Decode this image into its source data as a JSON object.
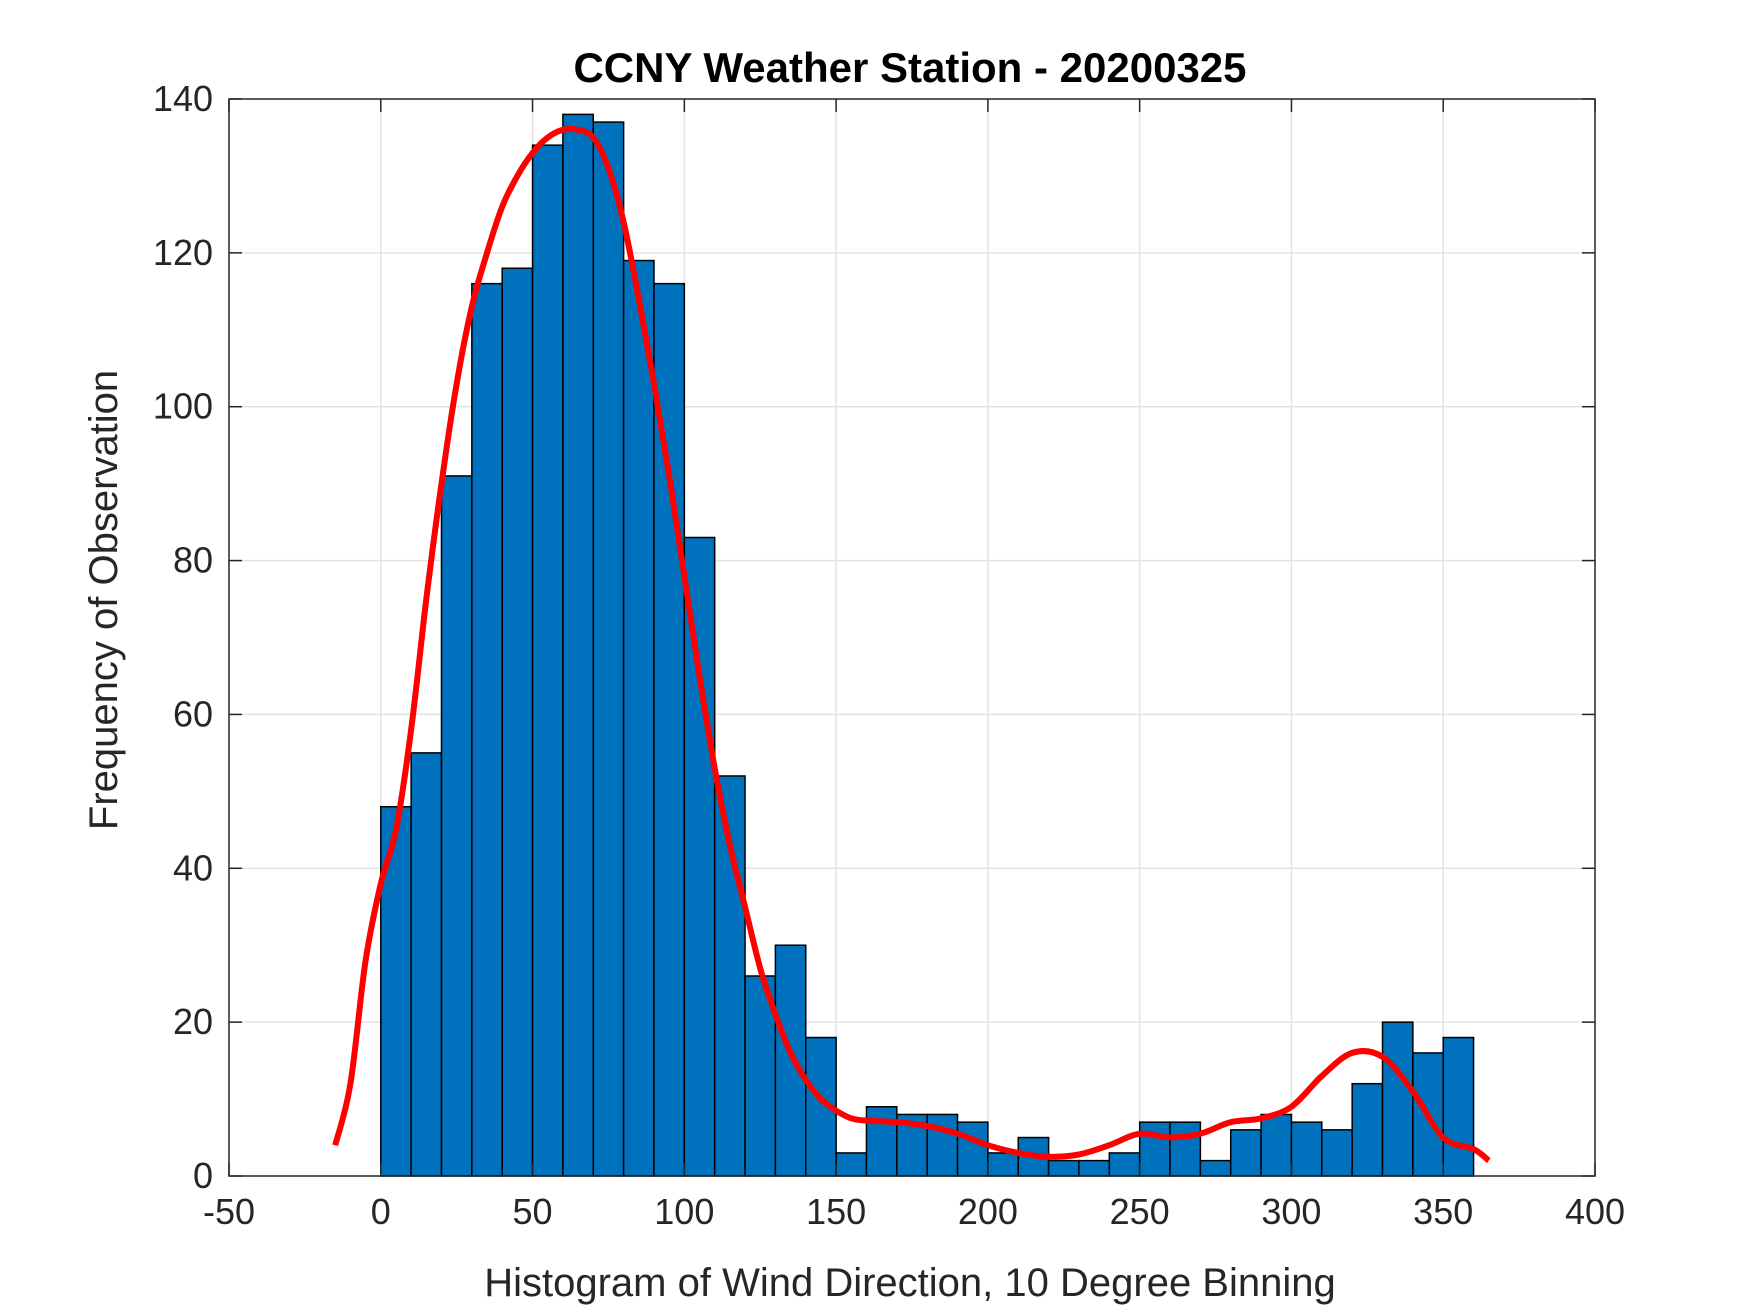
{
  "chart_data": {
    "type": "bar",
    "title": "CCNY Weather Station - 20200325",
    "xlabel": "Histogram of Wind Direction, 10 Degree Binning",
    "ylabel": "Frequency of Observation",
    "xlim": [
      -50,
      400
    ],
    "ylim": [
      0,
      140
    ],
    "xticks": [
      -50,
      0,
      50,
      100,
      150,
      200,
      250,
      300,
      350,
      400
    ],
    "yticks": [
      0,
      20,
      40,
      60,
      80,
      100,
      120,
      140
    ],
    "grid": true,
    "bin_width": 10,
    "bin_edges_start": [
      0,
      10,
      20,
      30,
      40,
      50,
      60,
      70,
      80,
      90,
      100,
      110,
      120,
      130,
      140,
      150,
      160,
      170,
      180,
      190,
      200,
      210,
      220,
      230,
      240,
      250,
      260,
      270,
      280,
      290,
      300,
      310,
      320,
      330,
      340,
      350
    ],
    "values": [
      48,
      55,
      91,
      116,
      118,
      134,
      138,
      137,
      119,
      116,
      83,
      52,
      26,
      30,
      18,
      3,
      9,
      8,
      8,
      7,
      3,
      5,
      2,
      2,
      3,
      7,
      7,
      2,
      6,
      8,
      7,
      6,
      12,
      20,
      16,
      18
    ],
    "bar_color": "#0072BD",
    "fit_curve": {
      "color": "#FF0000",
      "x": [
        -15,
        -10,
        -5,
        0,
        5,
        10,
        15,
        20,
        25,
        30,
        35,
        40,
        45,
        50,
        55,
        60,
        65,
        70,
        75,
        80,
        85,
        90,
        95,
        100,
        105,
        110,
        115,
        120,
        125,
        130,
        135,
        140,
        145,
        150,
        155,
        160,
        170,
        180,
        190,
        200,
        210,
        220,
        230,
        240,
        250,
        260,
        270,
        280,
        290,
        300,
        310,
        320,
        330,
        340,
        350,
        360,
        365
      ],
      "y": [
        4,
        12,
        28,
        38,
        45,
        58,
        75,
        90,
        103,
        113,
        120,
        126,
        130,
        133,
        135,
        136,
        136,
        135,
        131,
        124,
        114,
        103,
        91,
        78,
        65,
        53,
        43,
        35,
        27,
        21,
        16,
        12.5,
        10,
        8.5,
        7.5,
        7.2,
        7,
        6.5,
        5.5,
        4,
        3,
        2.5,
        2.8,
        4,
        5.5,
        5,
        5.5,
        7,
        7.5,
        9,
        13,
        16,
        15.5,
        11,
        5,
        3.5,
        2
      ]
    }
  }
}
